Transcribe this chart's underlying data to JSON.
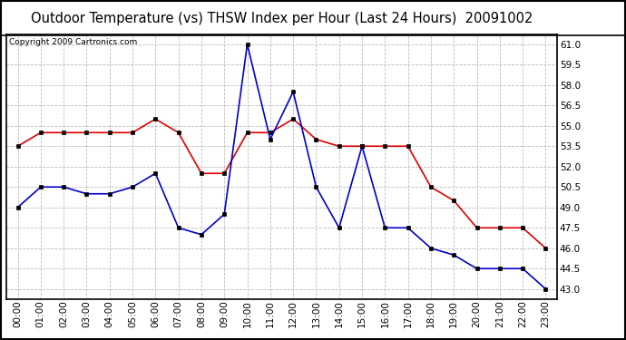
{
  "title": "Outdoor Temperature (vs) THSW Index per Hour (Last 24 Hours)  20091002",
  "copyright": "Copyright 2009 Cartronics.com",
  "hours": [
    0,
    1,
    2,
    3,
    4,
    5,
    6,
    7,
    8,
    9,
    10,
    11,
    12,
    13,
    14,
    15,
    16,
    17,
    18,
    19,
    20,
    21,
    22,
    23
  ],
  "hour_labels": [
    "00:00",
    "01:00",
    "02:00",
    "03:00",
    "04:00",
    "05:00",
    "06:00",
    "07:00",
    "08:00",
    "09:00",
    "10:00",
    "11:00",
    "12:00",
    "13:00",
    "14:00",
    "15:00",
    "16:00",
    "17:00",
    "18:00",
    "19:00",
    "20:00",
    "21:00",
    "22:00",
    "23:00"
  ],
  "temp_red": [
    53.5,
    54.5,
    54.5,
    54.5,
    54.5,
    54.5,
    55.5,
    54.5,
    51.5,
    51.5,
    54.5,
    54.5,
    55.5,
    54.0,
    53.5,
    53.5,
    53.5,
    53.5,
    50.5,
    49.5,
    47.5,
    47.5,
    47.5,
    46.0
  ],
  "thsw_blue": [
    49.0,
    50.5,
    50.5,
    50.0,
    50.0,
    50.5,
    51.5,
    47.5,
    47.0,
    48.5,
    61.0,
    54.0,
    57.5,
    50.5,
    47.5,
    53.5,
    47.5,
    47.5,
    46.0,
    45.5,
    44.5,
    44.5,
    44.5,
    43.0
  ],
  "ylim": [
    42.25,
    61.75
  ],
  "yticks": [
    43.0,
    44.5,
    46.0,
    47.5,
    49.0,
    50.5,
    52.0,
    53.5,
    55.0,
    56.5,
    58.0,
    59.5,
    61.0
  ],
  "bg_color": "#ffffff",
  "plot_bg_color": "#ffffff",
  "grid_color": "#bbbbbb",
  "red_color": "#dd0000",
  "blue_color": "#0000cc",
  "title_fontsize": 10.5,
  "copyright_fontsize": 6.5,
  "tick_fontsize": 7.5,
  "outer_border_color": "#000000",
  "figsize": [
    6.9,
    3.75
  ],
  "dpi": 100
}
